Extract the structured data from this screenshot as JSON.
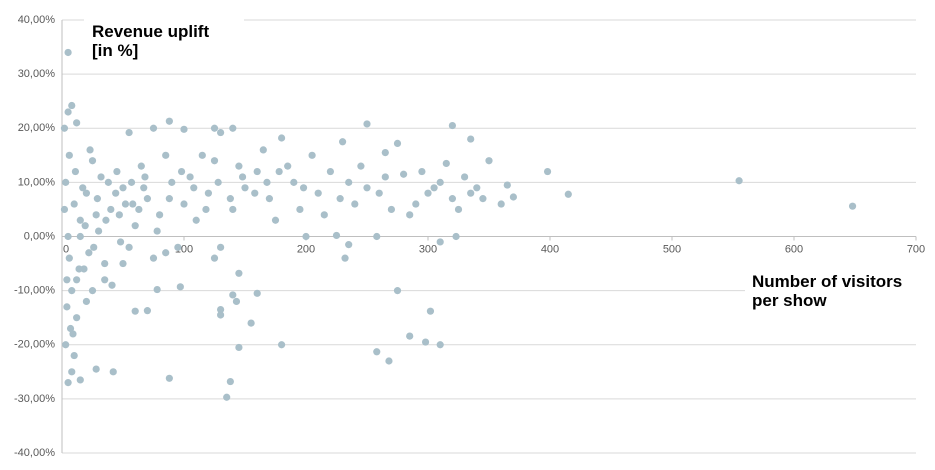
{
  "chart_data": {
    "type": "scatter",
    "x_label": [
      "Number of visitors",
      "per show"
    ],
    "y_label": [
      "Revenue uplift",
      "[in %]"
    ],
    "color": "#a9bfc9",
    "grid": true,
    "xlim": [
      0,
      700
    ],
    "xticks": [
      0,
      100,
      200,
      300,
      400,
      500,
      600,
      700
    ],
    "ylim": [
      -40,
      40
    ],
    "yticks": [
      {
        "value": -40,
        "label": "-40,00%"
      },
      {
        "value": -30,
        "label": "-30,00%"
      },
      {
        "value": -20,
        "label": "-20,00%"
      },
      {
        "value": -10,
        "label": "-10,00%"
      },
      {
        "value": 0,
        "label": "0,00%"
      },
      {
        "value": 10,
        "label": "10,00%"
      },
      {
        "value": 20,
        "label": "20,00%"
      },
      {
        "value": 30,
        "label": "30,00%"
      },
      {
        "value": 40,
        "label": "40,00%"
      }
    ],
    "x": [
      5,
      555,
      648,
      398,
      415,
      365,
      370,
      360,
      323,
      320,
      335,
      310,
      298,
      302,
      285,
      275,
      268,
      258,
      135,
      138,
      88,
      42,
      28,
      180,
      145,
      130,
      130,
      155,
      160,
      140,
      143,
      145,
      97,
      78,
      70,
      60,
      15,
      5,
      8,
      10,
      3,
      7,
      12,
      4,
      20,
      25,
      35,
      18,
      50,
      85,
      250,
      275,
      265,
      230,
      180,
      140,
      130,
      125,
      88,
      100,
      75,
      55,
      12,
      5,
      8,
      2,
      200,
      225,
      258,
      300,
      330,
      340,
      280,
      290,
      310,
      250,
      240,
      220,
      210,
      190,
      170,
      160,
      150,
      140,
      120,
      110,
      100,
      90,
      80,
      70,
      60,
      50,
      40,
      30,
      20,
      15,
      10,
      5,
      3,
      25,
      45,
      65,
      85,
      105,
      125,
      145,
      175,
      195,
      215,
      235,
      260,
      270,
      285,
      320,
      350,
      345,
      315,
      205,
      185,
      165,
      115,
      95,
      75,
      55,
      35,
      22,
      12,
      8,
      6,
      15,
      28,
      38,
      48,
      58,
      68,
      78,
      88,
      98,
      108,
      118,
      128,
      138,
      148,
      158,
      168,
      178,
      198,
      228,
      245,
      265,
      295,
      305,
      325,
      335,
      310,
      130,
      125,
      232,
      235,
      2,
      4,
      6,
      9,
      11,
      14,
      17,
      19,
      23,
      26,
      29,
      32,
      36,
      41,
      44,
      47,
      52,
      57,
      63,
      67
    ],
    "values": [
      34,
      10.3,
      5.6,
      12,
      7.8,
      9.5,
      7.3,
      6,
      0,
      20.5,
      18,
      -20,
      -19.5,
      -13.8,
      -18.4,
      -10,
      -23,
      -21.3,
      -29.7,
      -26.8,
      -26.2,
      -25,
      -24.5,
      -20,
      -20.5,
      -14.5,
      -13.5,
      -16,
      -10.5,
      -10.8,
      -12,
      -6.8,
      -9.3,
      -9.8,
      -13.7,
      -13.8,
      -26.5,
      -27,
      -25,
      -22,
      -20,
      -17,
      -15,
      -13,
      -12,
      -10,
      -8,
      -6,
      -5,
      -3,
      20.8,
      17.2,
      15.5,
      17.5,
      18.2,
      20,
      19.2,
      20,
      21.3,
      19.8,
      20,
      19.2,
      21,
      23,
      24.2,
      20,
      0,
      0.2,
      0,
      8,
      11,
      9,
      11.5,
      6,
      10,
      9,
      6,
      12,
      8,
      10,
      7,
      12,
      9,
      5,
      8,
      3,
      6,
      10,
      4,
      7,
      2,
      9,
      5,
      1,
      8,
      3,
      6,
      0,
      10,
      14,
      12,
      13,
      15,
      11,
      14,
      13,
      3,
      5,
      4,
      10,
      8,
      5,
      4,
      7,
      14,
      7,
      13.5,
      15,
      13,
      16,
      15,
      -2,
      -4,
      -2,
      -5,
      -3,
      -8,
      -10,
      -4,
      0,
      4,
      10,
      -1,
      6,
      11,
      1,
      7,
      12,
      9,
      5,
      10,
      7,
      11,
      8,
      10,
      12,
      9,
      7,
      13,
      11,
      12,
      9,
      5,
      8,
      -1,
      -2,
      -4,
      -4,
      -1.5,
      5,
      -8,
      15,
      -18,
      12,
      -6,
      9,
      2,
      16,
      -2,
      7,
      11,
      3,
      -9,
      8,
      4,
      6,
      10,
      5,
      9
    ]
  }
}
